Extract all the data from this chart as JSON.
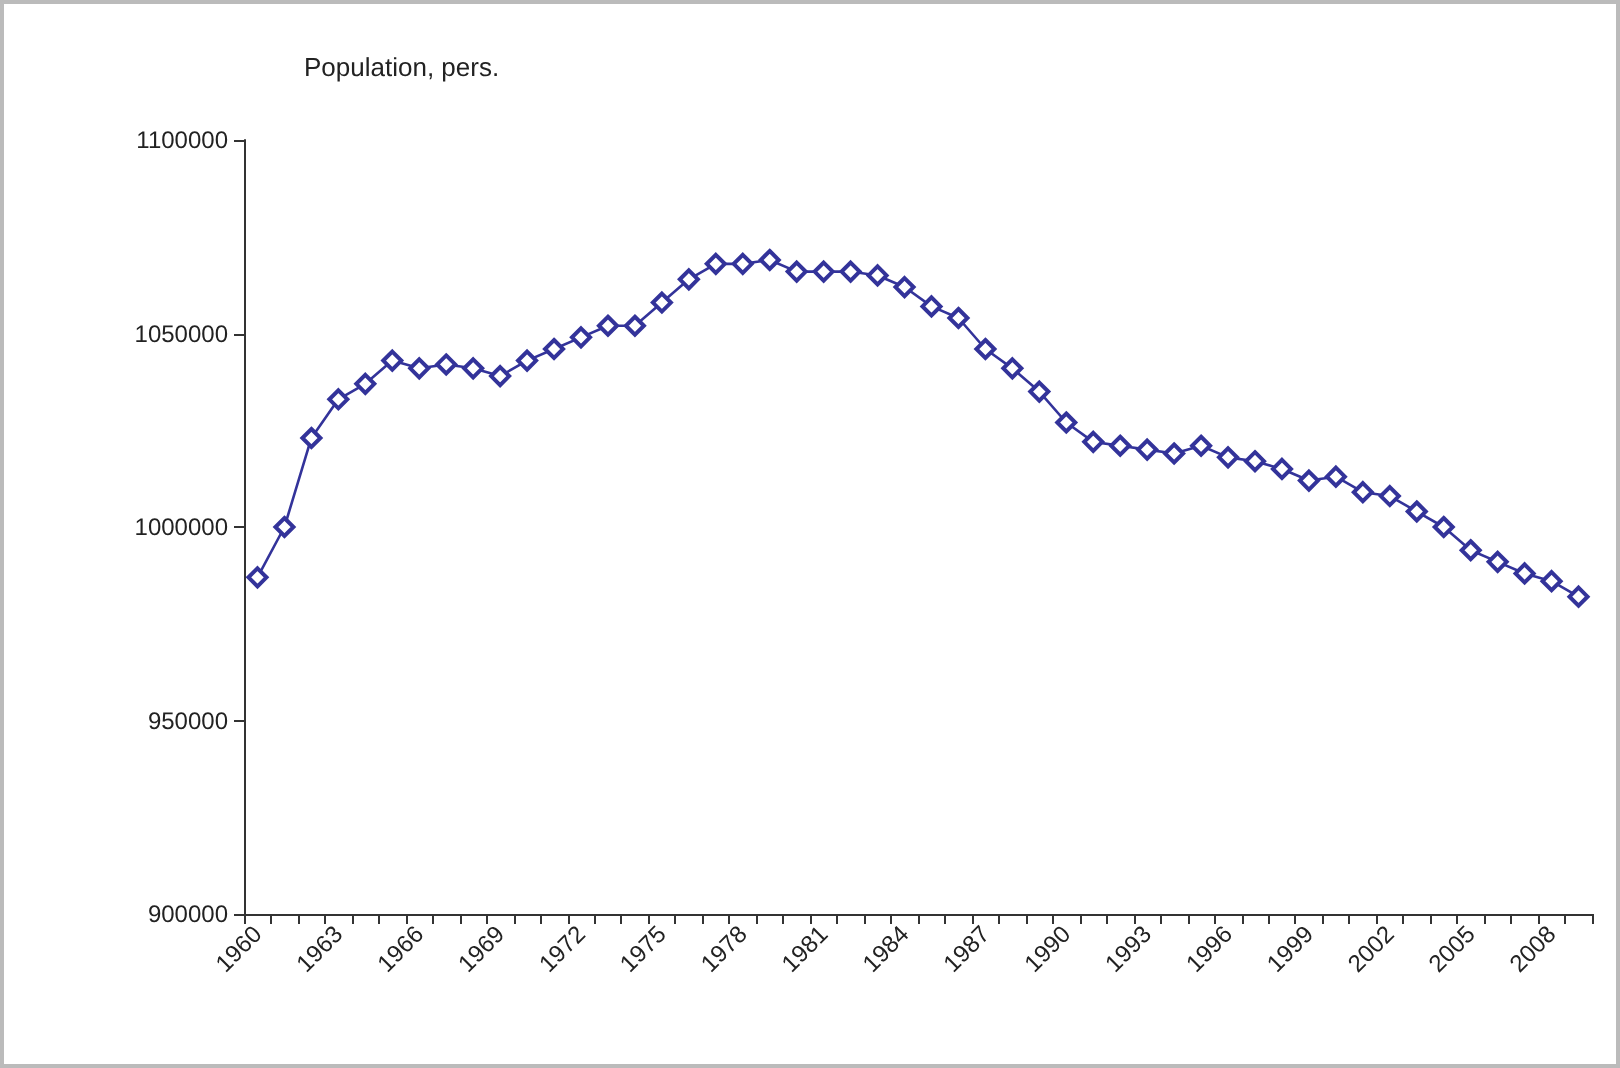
{
  "chart_data": {
    "type": "line",
    "ylabel": "Population, pers.",
    "categories": [
      "1960",
      null,
      null,
      "1963",
      null,
      null,
      "1966",
      null,
      null,
      "1969",
      null,
      null,
      "1972",
      null,
      null,
      "1975",
      null,
      null,
      "1978",
      null,
      null,
      "1981",
      null,
      null,
      "1984",
      null,
      null,
      "1987",
      null,
      null,
      "1990",
      null,
      null,
      "1993",
      null,
      null,
      "1996",
      null,
      null,
      "1999",
      null,
      null,
      "2002",
      null,
      null,
      "2005",
      null,
      null,
      "2008",
      null
    ],
    "series": [
      {
        "color": "#33339a",
        "values": [
          987000,
          1000000,
          1023000,
          1033000,
          1037000,
          1043000,
          1041000,
          1042000,
          1041000,
          1039000,
          1043000,
          1046000,
          1049000,
          1052000,
          1052000,
          1058000,
          1064000,
          1068000,
          1068000,
          1069000,
          1066000,
          1066000,
          1066000,
          1065000,
          1062000,
          1057000,
          1054000,
          1046000,
          1041000,
          1035000,
          1027000,
          1022000,
          1021000,
          1020000,
          1019000,
          1021000,
          1018000,
          1017000,
          1015000,
          1012000,
          1013000,
          1009000,
          1008000,
          1004000,
          1000000,
          994000,
          991000,
          988000,
          986000,
          982000
        ]
      }
    ],
    "ylim": [
      900000,
      1100000
    ],
    "yticks": [
      900000,
      950000,
      1000000,
      1050000,
      1100000
    ],
    "grid": false,
    "marker": "diamond",
    "line_style": "solid"
  }
}
